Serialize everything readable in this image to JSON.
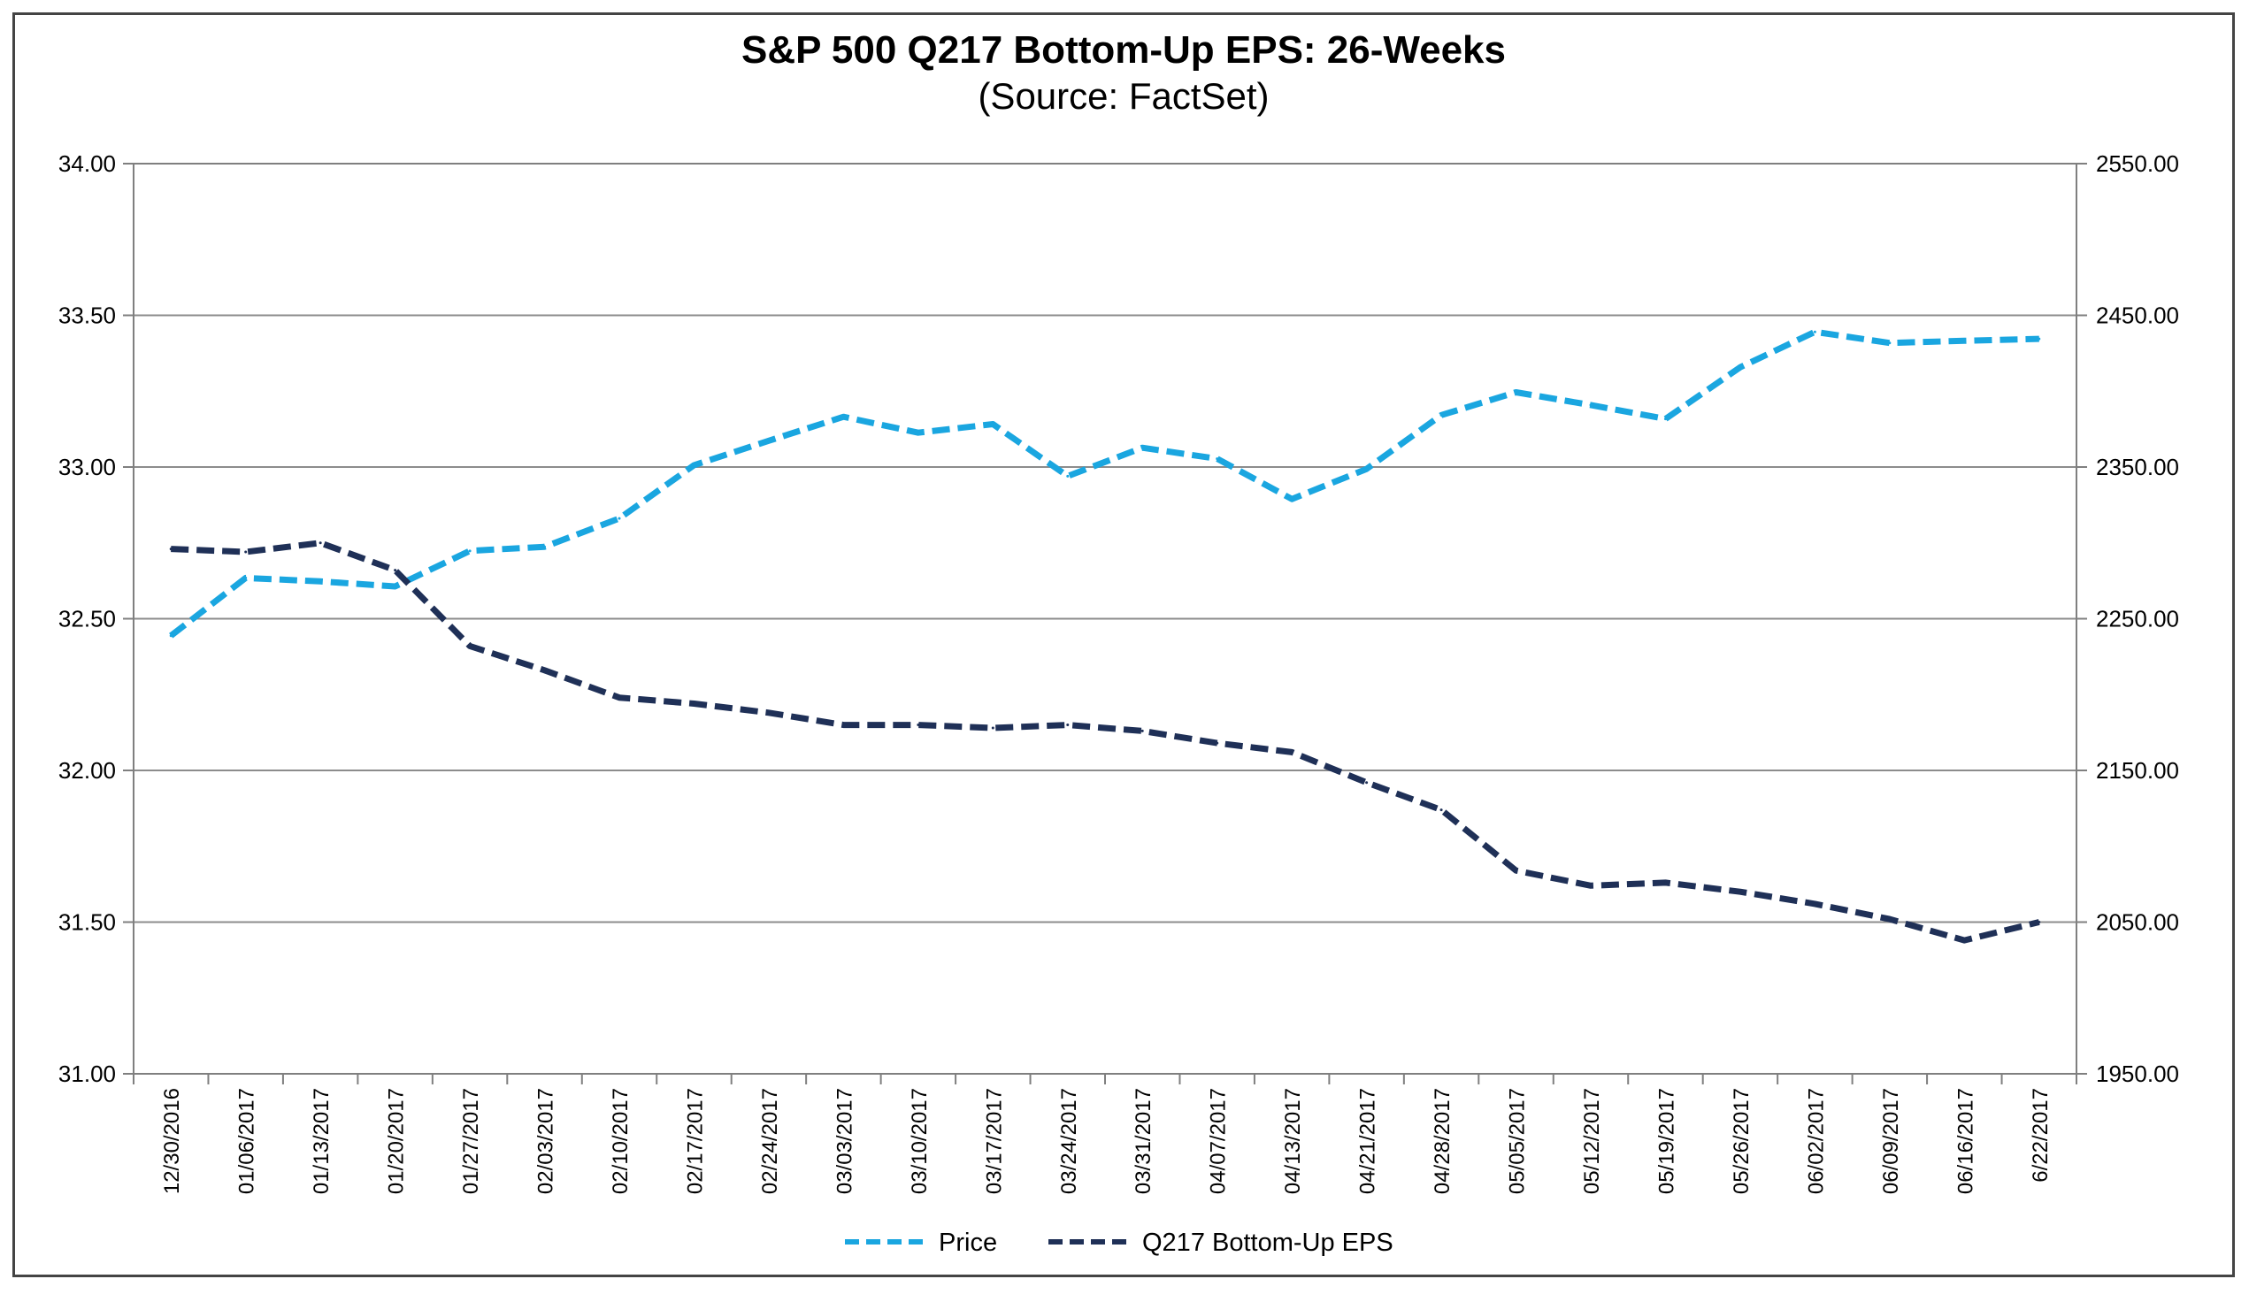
{
  "chart_data": {
    "type": "line",
    "title": "S&P 500 Q217 Bottom-Up EPS: 26-Weeks",
    "subtitle": "(Source: FactSet)",
    "x": [
      "12/30/2016",
      "01/06/2017",
      "01/13/2017",
      "01/20/2017",
      "01/27/2017",
      "02/03/2017",
      "02/10/2017",
      "02/17/2017",
      "02/24/2017",
      "03/03/2017",
      "03/10/2017",
      "03/17/2017",
      "03/24/2017",
      "03/31/2017",
      "04/07/2017",
      "04/13/2017",
      "04/21/2017",
      "04/28/2017",
      "05/05/2017",
      "05/12/2017",
      "05/19/2017",
      "05/26/2017",
      "06/02/2017",
      "06/09/2017",
      "06/16/2017",
      "6/22/2017"
    ],
    "y_left": {
      "min": 31.0,
      "max": 34.0,
      "step": 0.5,
      "ticks": [
        "31.00",
        "31.50",
        "32.00",
        "32.50",
        "33.00",
        "33.50",
        "34.00"
      ]
    },
    "y_right": {
      "min": 1950,
      "max": 2550,
      "step": 100,
      "ticks": [
        "1950.00",
        "2050.00",
        "2150.00",
        "2250.00",
        "2350.00",
        "2450.00",
        "2550.00"
      ]
    },
    "grid": true,
    "legend_position": "bottom",
    "series": [
      {
        "name": "Price",
        "axis": "right",
        "color": "#1aa6e0",
        "values": [
          2238.8,
          2276.9,
          2274.6,
          2271.3,
          2294.7,
          2297.4,
          2316.1,
          2351.2,
          2367.3,
          2383.1,
          2372.6,
          2378.3,
          2343.98,
          2362.7,
          2355.5,
          2328.9,
          2348.7,
          2384.2,
          2399.3,
          2390.9,
          2381.7,
          2415.8,
          2439.1,
          2431.8,
          2433.2,
          2434.5
        ]
      },
      {
        "name": "Q217 Bottom-Up EPS",
        "axis": "left",
        "color": "#1f3057",
        "values": [
          32.73,
          32.72,
          32.75,
          32.66,
          32.41,
          32.33,
          32.24,
          32.22,
          32.19,
          32.15,
          32.15,
          32.14,
          32.15,
          32.13,
          32.09,
          32.06,
          31.96,
          31.87,
          31.67,
          31.62,
          31.63,
          31.6,
          31.56,
          31.51,
          31.44,
          31.5
        ]
      }
    ]
  }
}
